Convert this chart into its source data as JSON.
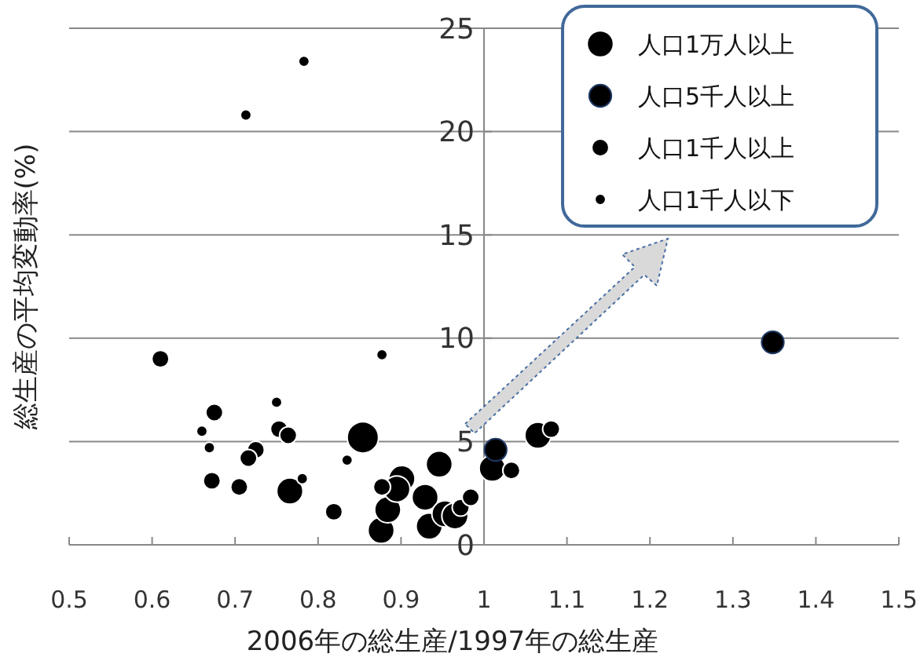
{
  "chart_data": {
    "type": "bubble",
    "xlabel": "2006年の総生産/1997年の総生産",
    "ylabel": "総生産の平均変動率(%)",
    "xlim": [
      0.5,
      1.5
    ],
    "xticks": [
      0.5,
      0.6,
      0.7,
      0.8,
      0.9,
      1,
      1.1,
      1.2,
      1.3,
      1.4,
      1.5
    ],
    "ylim": [
      0,
      25
    ],
    "yticks": [
      0,
      5,
      10,
      15,
      20,
      25
    ],
    "grid": "y",
    "legend": "top right",
    "series": [
      {
        "name": "人口1万人以上",
        "color": "#000000",
        "x": [
          0.766,
          0.854,
          0.876,
          0.884,
          0.901,
          0.895,
          0.929,
          0.934,
          0.946,
          0.953,
          0.965,
          1.01,
          1.065
        ],
        "values": [
          2.6,
          5.2,
          0.7,
          1.7,
          3.2,
          2.7,
          2.3,
          0.9,
          3.9,
          1.5,
          1.4,
          3.7,
          5.3
        ],
        "sizes": [
          0.7,
          1,
          0.7,
          0.7,
          0.7,
          0.7,
          0.7,
          0.7,
          0.7,
          0.7,
          0.7,
          0.7,
          0.7
        ]
      },
      {
        "name": "人口5千人以上",
        "color": "#000000",
        "x": [
          1.348,
          1.014
        ],
        "values": [
          9.8,
          4.6
        ],
        "sizes": [
          0.5,
          0.5
        ]
      },
      {
        "name": "人口1千人以上",
        "color": "#000000",
        "x": [
          0.61,
          0.675,
          0.753,
          0.764,
          0.725,
          0.716,
          0.672,
          0.705,
          0.819,
          0.877,
          0.972,
          0.984,
          1.033,
          1.081
        ],
        "values": [
          9.0,
          6.4,
          5.6,
          5.3,
          4.6,
          4.2,
          3.1,
          2.8,
          1.6,
          2.8,
          1.8,
          2.3,
          3.6,
          5.6
        ],
        "sizes": [
          0.3,
          0.3,
          0.3,
          0.3,
          0.3,
          0.3,
          0.3,
          0.3,
          0.3,
          0.3,
          0.3,
          0.3,
          0.3,
          0.3
        ]
      },
      {
        "name": "人口1千人以下",
        "color": "#000000",
        "x": [
          0.877,
          0.66,
          0.669,
          0.75,
          0.781,
          0.835,
          0.713,
          0.783
        ],
        "values": [
          9.2,
          5.5,
          4.7,
          6.9,
          3.2,
          4.1,
          20.8,
          23.4
        ],
        "sizes": [
          0.12,
          0.12,
          0.12,
          0.12,
          0.12,
          0.12,
          0.12,
          0.12
        ]
      }
    ]
  }
}
